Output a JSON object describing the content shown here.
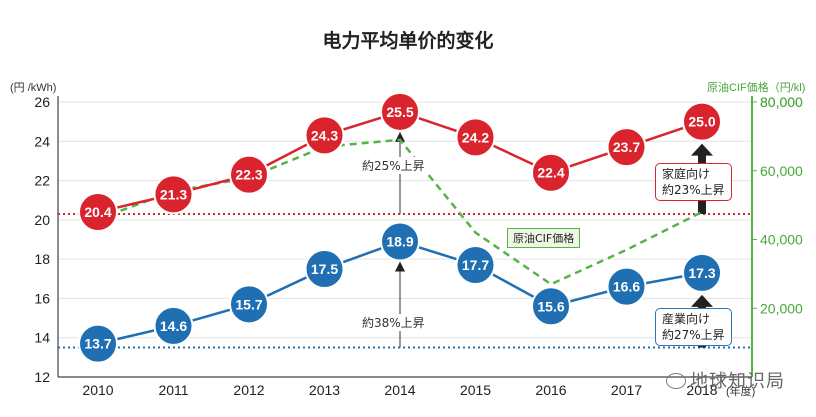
{
  "chart_data": {
    "type": "line",
    "title": "电力平均单价的变化",
    "ylabel_left": "(円 /kWh)",
    "ylabel_right": "原油CIF価格（円/kl)",
    "xunit": "(年度)",
    "categories": [
      "2010",
      "2011",
      "2012",
      "2013",
      "2014",
      "2015",
      "2016",
      "2017",
      "2018"
    ],
    "y_left_ticks": [
      "12",
      "14",
      "16",
      "18",
      "20",
      "22",
      "24",
      "26"
    ],
    "y_right_ticks": [
      "20,000",
      "40,000",
      "60,000",
      "80,000"
    ],
    "ylim_left": [
      12,
      26
    ],
    "ylim_right": [
      0,
      80000
    ],
    "series": [
      {
        "name": "家庭向け",
        "color": "#d9232d",
        "values": [
          20.4,
          21.3,
          22.3,
          24.3,
          25.5,
          24.2,
          22.4,
          23.7,
          25.0
        ],
        "labels": [
          "20.4",
          "21.3",
          "22.3",
          "24.3",
          "25.5",
          "24.2",
          "22.4",
          "23.7",
          "25.0"
        ]
      },
      {
        "name": "産業向け",
        "color": "#1f6fb2",
        "values": [
          13.7,
          14.6,
          15.7,
          17.5,
          18.9,
          17.7,
          15.6,
          16.6,
          17.3
        ],
        "labels": [
          "13.7",
          "14.6",
          "15.7",
          "17.5",
          "18.9",
          "17.7",
          "15.6",
          "16.6",
          "17.3"
        ]
      },
      {
        "name": "原油CIF価格",
        "color": "#56b447",
        "axis": "right",
        "values": [
          46000,
          54000,
          58000,
          67000,
          69000,
          42000,
          27000,
          37000,
          48000
        ]
      }
    ],
    "baselines": {
      "red": 20.3,
      "blue": 13.5
    }
  },
  "annotations": {
    "rise_red": "約25%上昇",
    "rise_blue": "約38%上昇",
    "oil_label": "原油CIF価格",
    "red_callout_1": "家庭向け",
    "red_callout_2": "約23%上昇",
    "blue_callout_1": "産業向け",
    "blue_callout_2": "約27%上昇"
  },
  "watermark": "地球知识局"
}
